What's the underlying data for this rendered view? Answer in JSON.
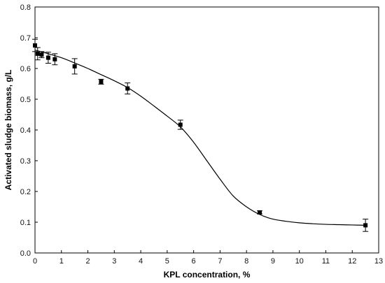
{
  "chart_data": {
    "type": "scatter",
    "title": "",
    "xlabel": "KPL concentration, %",
    "ylabel": "Activated sludge biomass, g/L",
    "xlim": [
      0,
      13
    ],
    "ylim": [
      0,
      0.8
    ],
    "xticks": [
      0,
      1,
      2,
      3,
      4,
      5,
      6,
      7,
      8,
      9,
      10,
      11,
      12,
      13
    ],
    "yticks": [
      0.0,
      0.1,
      0.2,
      0.3,
      0.4,
      0.5,
      0.6,
      0.7,
      0.8
    ],
    "xtick_labels": [
      "0",
      "1",
      "2",
      "3",
      "4",
      "5",
      "6",
      "7",
      "8",
      "9",
      "10",
      "11",
      "12",
      "13"
    ],
    "ytick_labels": [
      "0.0",
      "0.1",
      "0.2",
      "0.3",
      "0.4",
      "0.5",
      "0.6",
      "0.7",
      "0.8"
    ],
    "grid": false,
    "legend": "none",
    "marker_color": "#000000",
    "line_color": "#000000",
    "series": [
      {
        "x": [
          0.0,
          0.1,
          0.25,
          0.5,
          0.75,
          1.5,
          2.5,
          3.5,
          5.5,
          8.5,
          12.5
        ],
        "y": [
          0.675,
          0.648,
          0.645,
          0.635,
          0.63,
          0.607,
          0.557,
          0.535,
          0.417,
          0.132,
          0.09
        ],
        "yerr": [
          0.02,
          0.02,
          0.01,
          0.018,
          0.018,
          0.025,
          0.008,
          0.018,
          0.015,
          0.005,
          0.02
        ]
      }
    ],
    "fit_curve": {
      "x": [
        0,
        0.5,
        1,
        1.5,
        2,
        2.5,
        3,
        3.5,
        4,
        4.5,
        5,
        5.5,
        6,
        6.5,
        7,
        7.5,
        8,
        8.5,
        9,
        9.5,
        10,
        10.5,
        11,
        11.5,
        12,
        12.5
      ],
      "y": [
        0.66,
        0.648,
        0.635,
        0.618,
        0.6,
        0.58,
        0.56,
        0.538,
        0.51,
        0.478,
        0.445,
        0.41,
        0.36,
        0.3,
        0.24,
        0.185,
        0.15,
        0.125,
        0.11,
        0.103,
        0.098,
        0.095,
        0.093,
        0.092,
        0.091,
        0.09
      ]
    }
  }
}
